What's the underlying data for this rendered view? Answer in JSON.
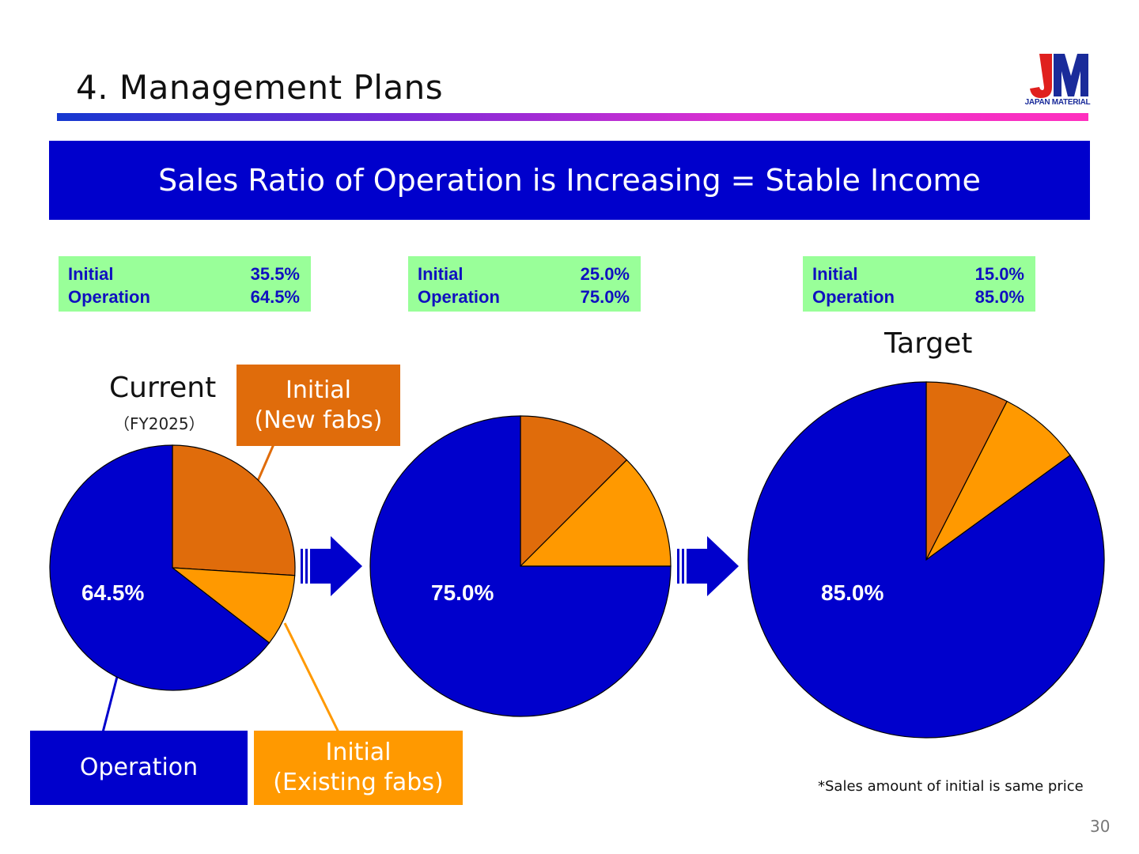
{
  "header": {
    "title": "4. Management Plans",
    "logo_text": "JAPAN MATERIAL",
    "logo_letters": "JM"
  },
  "banner": {
    "text": "Sales Ratio of Operation is Increasing = Stable Income"
  },
  "ratio_boxes": [
    {
      "rows": [
        {
          "label": "Initial",
          "value": "35.5%"
        },
        {
          "label": "Operation",
          "value": "64.5%"
        }
      ]
    },
    {
      "rows": [
        {
          "label": "Initial",
          "value": "25.0%"
        },
        {
          "label": "Operation",
          "value": "75.0%"
        }
      ]
    },
    {
      "rows": [
        {
          "label": "Initial",
          "value": "15.0%"
        },
        {
          "label": "Operation",
          "value": "85.0%"
        }
      ]
    }
  ],
  "labels": {
    "current": "Current",
    "fiscal_year": "（FY2025）",
    "target": "Target"
  },
  "callouts": {
    "initial_new": [
      "Initial",
      "(New fabs)"
    ],
    "initial_existing": [
      "Initial",
      "(Existing fabs)"
    ],
    "operation": "Operation"
  },
  "pie_labels": [
    "64.5%",
    "75.0%",
    "85.0%"
  ],
  "note": "*Sales amount of initial is same price",
  "page_number": "30",
  "colors": {
    "operation": "#0000cc",
    "initial_new": "#e06c0b",
    "initial_existing": "#ff9900",
    "banner": "#0000cc",
    "ratio_box": "#99ff99"
  },
  "chart_data": [
    {
      "type": "pie",
      "categories": [
        "Initial (New fabs)",
        "Initial (Existing fabs)",
        "Operation"
      ],
      "values": [
        26.0,
        9.5,
        64.5
      ]
    },
    {
      "type": "pie",
      "categories": [
        "Initial (New fabs)",
        "Initial (Existing fabs)",
        "Operation"
      ],
      "values": [
        12.5,
        12.5,
        75.0
      ]
    },
    {
      "type": "pie",
      "categories": [
        "Initial (New fabs)",
        "Initial (Existing fabs)",
        "Operation"
      ],
      "values": [
        7.5,
        7.5,
        85.0
      ]
    }
  ]
}
